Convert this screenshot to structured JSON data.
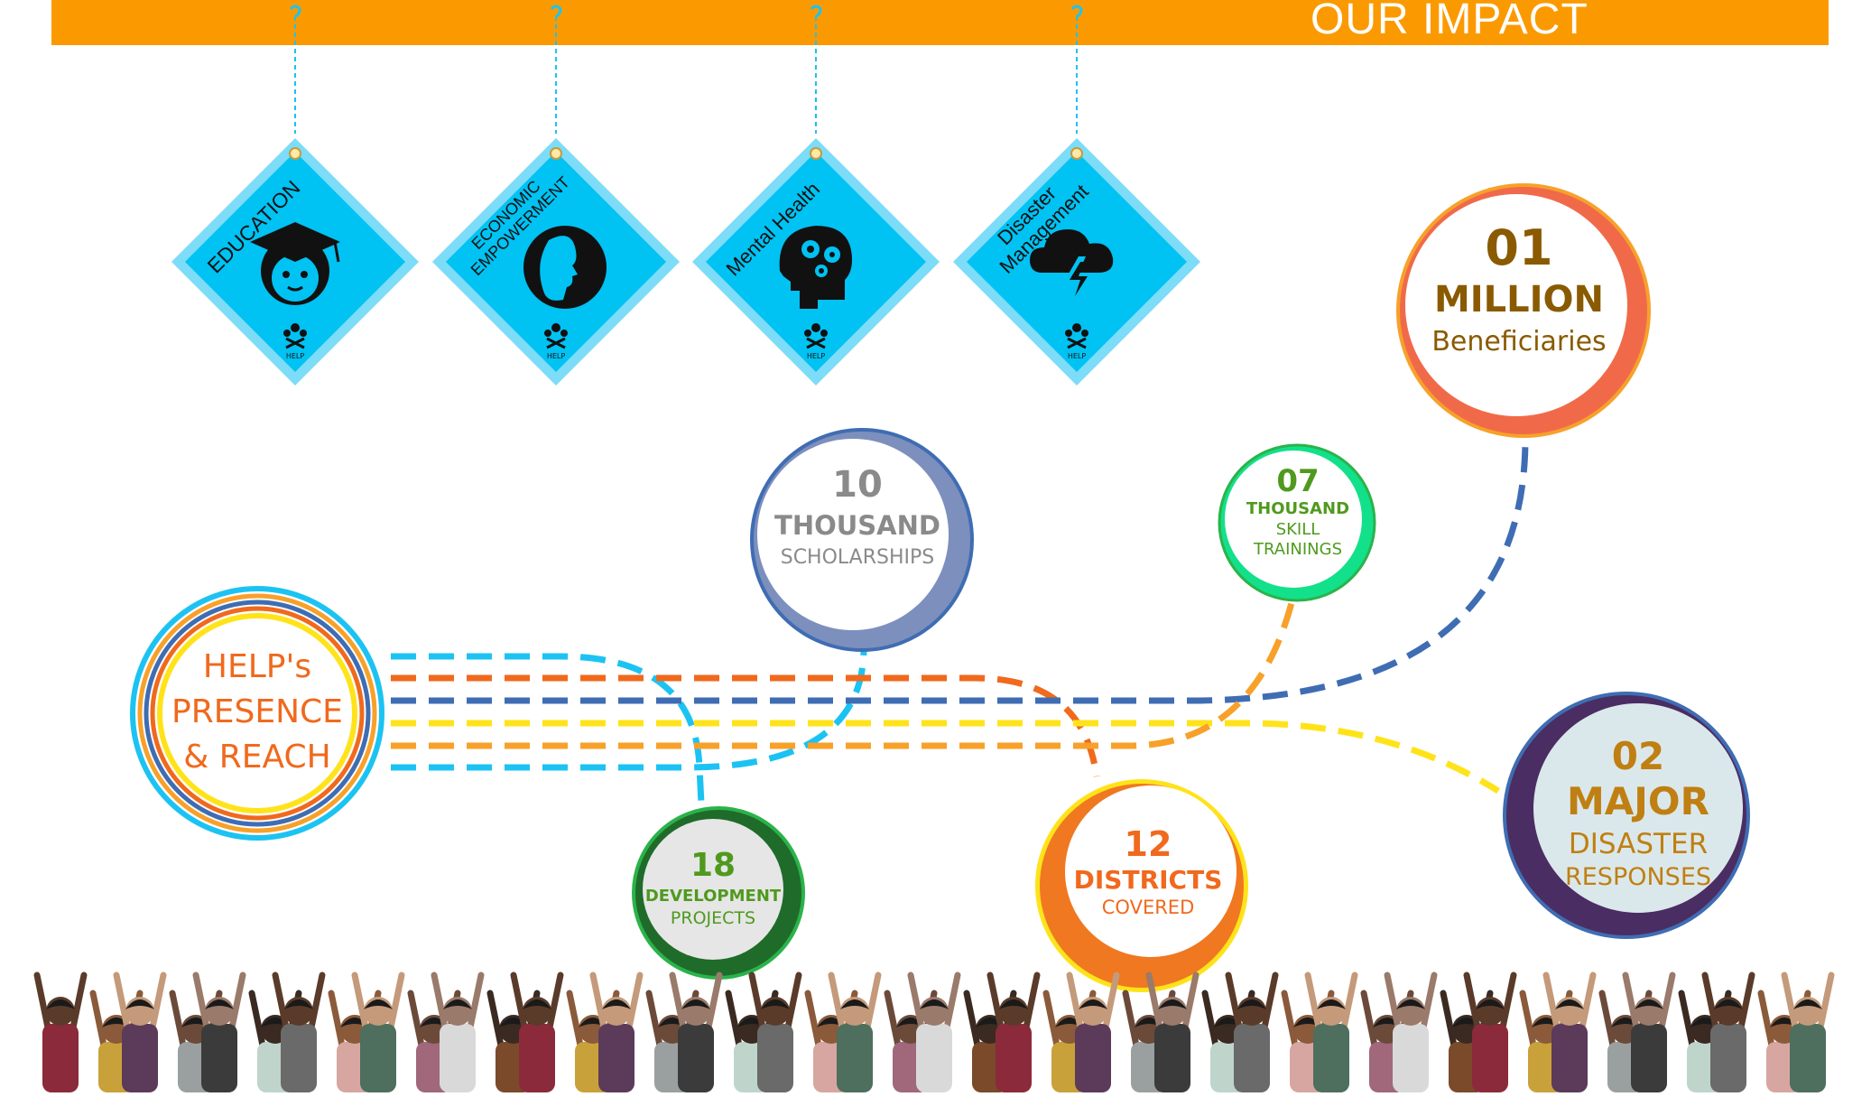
{
  "header": {
    "title": "OUR IMPACT",
    "color": "#fb9a00"
  },
  "tags": [
    {
      "label": "EDUCATION",
      "icon": "graduate-face-icon"
    },
    {
      "label_lines": [
        "ECONOMIC",
        "EMPOWERMENT"
      ],
      "icon": "woman-profile-icon"
    },
    {
      "label": "Mental Health",
      "icon": "head-gears-icon"
    },
    {
      "label_lines": [
        "Disaster",
        "Management"
      ],
      "icon": "storm-cloud-icon"
    }
  ],
  "tag_logo_text": "HELP",
  "hub": {
    "lines": [
      "HELP's",
      "PRESENCE",
      "& REACH"
    ]
  },
  "stats": {
    "beneficiaries": {
      "number": "01",
      "unit": "MILLION",
      "label": "Beneficiaries"
    },
    "scholarships": {
      "number": "10",
      "unit": "THOUSAND",
      "label": "SCHOLARSHIPS"
    },
    "skills": {
      "number": "07",
      "unit": "THOUSAND",
      "label_lines": [
        "SKILL",
        "TRAININGS"
      ]
    },
    "projects": {
      "number": "18",
      "unit": "DEVELOPMENT",
      "label": "PROJECTS"
    },
    "districts": {
      "number": "12",
      "unit": "DISTRICTS",
      "label": "COVERED"
    },
    "disasters": {
      "number": "02",
      "unit": "MAJOR",
      "label_lines": [
        "DISASTER",
        "RESPONSES"
      ]
    }
  },
  "colors": {
    "cyan": "#1cc3f2",
    "orange_red": "#f0691d",
    "blue": "#3f6db3",
    "yellow": "#ffe31a",
    "orange": "#f7a12a",
    "green": "#2bb34a"
  }
}
